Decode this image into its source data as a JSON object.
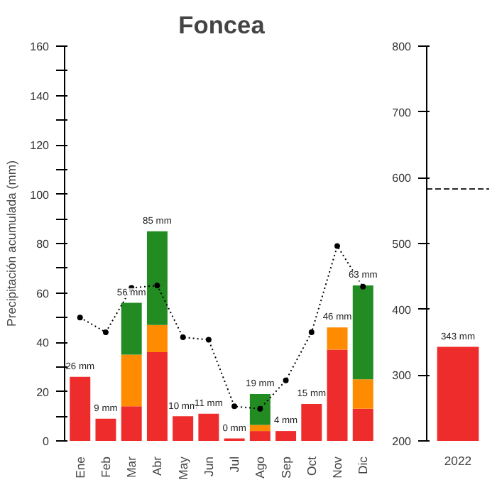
{
  "chart_data": [
    {
      "type": "bar",
      "title": "Foncea",
      "ylabel": "Precipitación acumulada (mm)",
      "stacked": true,
      "categories": [
        "Ene",
        "Feb",
        "Mar",
        "Abr",
        "May",
        "Jun",
        "Jul",
        "Ago",
        "Sep",
        "Oct",
        "Nov",
        "Dic"
      ],
      "series": [
        {
          "color": "#ee2c2c",
          "values": [
            26,
            9,
            14,
            36,
            10,
            11,
            1,
            4,
            4,
            15,
            37,
            13
          ]
        },
        {
          "color": "#ff8c00",
          "values": [
            0,
            0,
            21,
            11,
            0,
            0,
            0,
            2.5,
            0,
            0,
            9,
            12
          ]
        },
        {
          "color": "#228b22",
          "values": [
            0,
            0,
            21,
            38,
            0,
            0,
            0,
            12.5,
            0,
            0,
            0,
            38
          ]
        },
        {
          "type": "line",
          "color": "#000000",
          "marker": "circle",
          "line_style": "dotted",
          "values": [
            50,
            44,
            62,
            63,
            42,
            41,
            14,
            13,
            24.5,
            44,
            79,
            62.5
          ]
        }
      ],
      "totals": [
        "26 mm",
        "9 mm",
        "56 mm",
        "85 mm",
        "10 mm",
        "11 mm",
        "0 mm",
        "19 mm",
        "4 mm",
        "15 mm",
        "46 mm",
        "63 mm"
      ],
      "ylim": [
        0,
        160
      ],
      "yticks": [
        0,
        {
          "value": 10,
          "label": null
        },
        20,
        {
          "value": 30,
          "label": null
        },
        40,
        {
          "value": 50,
          "label": null
        },
        60,
        {
          "value": 70,
          "label": null
        },
        80,
        {
          "value": 90,
          "label": null
        },
        100,
        {
          "value": 110,
          "label": null
        },
        120,
        {
          "value": 130,
          "label": null
        },
        140,
        {
          "value": 150,
          "label": null
        },
        160
      ],
      "grid": false
    },
    {
      "type": "bar",
      "categories": [
        "2022"
      ],
      "series": [
        {
          "color": "#ee2c2c",
          "values": [
            343
          ]
        }
      ],
      "value_labels": [
        "343 mm"
      ],
      "ylim": [
        200,
        800
      ],
      "yticks": [
        200,
        300,
        400,
        500,
        600,
        700,
        800
      ],
      "ref_lines": [
        {
          "axis": "y",
          "value": 583,
          "color": "#000000",
          "line_style": "dashed"
        }
      ],
      "grid": false
    }
  ]
}
